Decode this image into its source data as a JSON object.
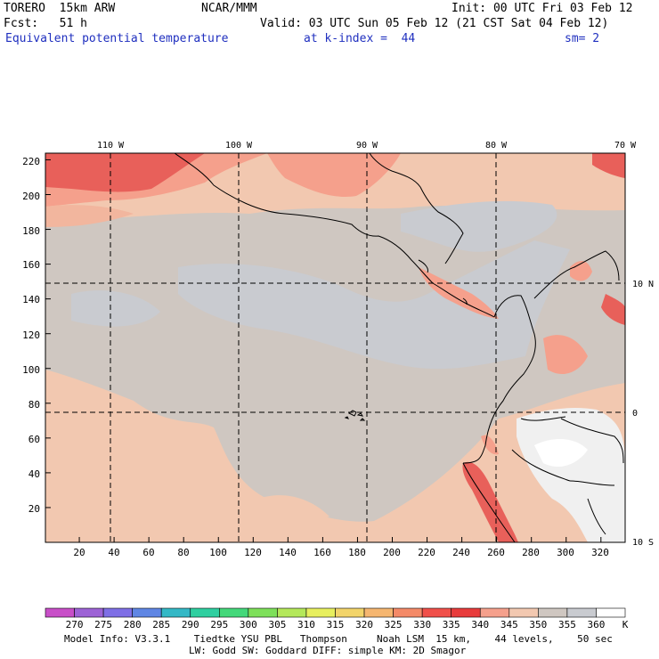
{
  "header": {
    "model": "TORERO  15km ARW",
    "center": "NCAR/MMM",
    "init": "Init: 00 UTC Fri 03 Feb 12",
    "fcst": "Fcst:   51 h",
    "valid": "Valid: 03 UTC Sun 05 Feb 12 (21 CST Sat 04 Feb 12)",
    "field": "Equivalent potential temperature",
    "level": "at k-index =  44",
    "smooth": "sm= 2"
  },
  "map": {
    "top_lon_labels": [
      "110 W",
      "100 W",
      "90 W",
      "80 W",
      "70 W"
    ],
    "right_lat_labels": [
      "10 N",
      "0",
      "10 S"
    ],
    "left_grid_labels": [
      "220",
      "200",
      "180",
      "160",
      "140",
      "120",
      "100",
      "80",
      "60",
      "40",
      "20"
    ],
    "bottom_grid_labels": [
      "20",
      "40",
      "60",
      "80",
      "100",
      "120",
      "140",
      "160",
      "180",
      "200",
      "220",
      "240",
      "260",
      "280",
      "300",
      "320"
    ]
  },
  "colorbar": {
    "unit": "K",
    "labels": [
      "270",
      "275",
      "280",
      "285",
      "290",
      "295",
      "300",
      "305",
      "310",
      "315",
      "320",
      "325",
      "330",
      "335",
      "340",
      "345",
      "350",
      "355",
      "360"
    ],
    "colors": [
      "#c84fc8",
      "#9d63d6",
      "#7f6fe6",
      "#5f86e4",
      "#34b8c6",
      "#2fcfa0",
      "#44d87a",
      "#7ee05a",
      "#b4e85a",
      "#e7ef5e",
      "#f2d46a",
      "#f5b670",
      "#f48a68",
      "#f0504a",
      "#e83c3c",
      "#f5a08c",
      "#f2c8b0",
      "#cfc7c1",
      "#c9cbd0",
      "#ffffff"
    ]
  },
  "footer": {
    "line1": "Model Info: V3.3.1    Tiedtke YSU PBL   Thompson     Noah LSM  15 km,    44 levels,    50 sec",
    "line2": "LW: Godd SW: Goddard DIFF: simple KM: 2D Smagor"
  }
}
